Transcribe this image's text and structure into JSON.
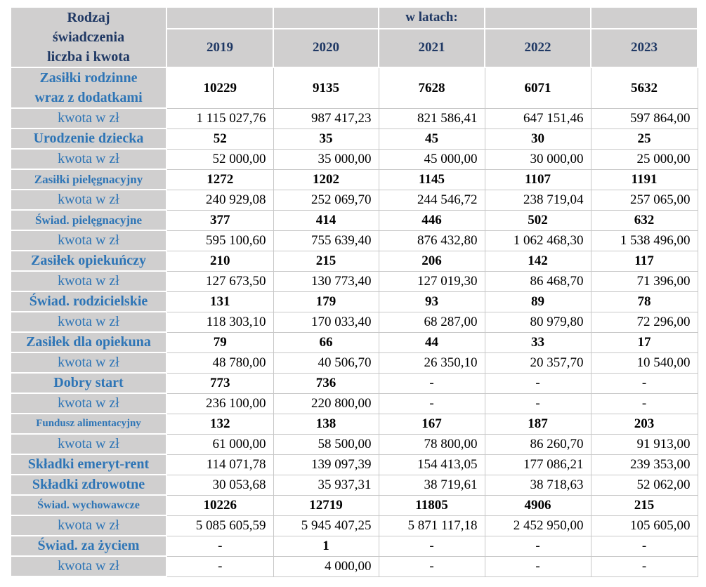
{
  "colors": {
    "header_text_navy": "#1f3864",
    "label_text_blue": "#2e75b6",
    "header_bg_gray": "#d0cfcf",
    "grid_line": "#c8c8c8",
    "value_text": "#000000"
  },
  "chart_data": {
    "type": "table",
    "corner_header": "Rodzaj\nświadczenia\nliczba i kwota",
    "span_header": "w latach:",
    "years": [
      "2019",
      "2020",
      "2021",
      "2022",
      "2023"
    ],
    "rows": [
      {
        "label": "Zasiłki rodzinne\nwraz z dodatkami",
        "label_style": "benefit",
        "label_size": "lg",
        "value_style": "count",
        "values": [
          "10229",
          "9135",
          "7628",
          "6071",
          "5632"
        ]
      },
      {
        "label": "kwota w zł",
        "label_style": "kwota",
        "label_size": "lg",
        "value_style": "amount",
        "values": [
          "1 115 027,76",
          "987 417,23",
          "821 586,41",
          "647 151,46",
          "597 864,00"
        ]
      },
      {
        "label": "Urodzenie dziecka",
        "label_style": "benefit",
        "label_size": "lg",
        "value_style": "count",
        "values": [
          "52",
          "35",
          "45",
          "30",
          "25"
        ]
      },
      {
        "label": "kwota w zł",
        "label_style": "kwota",
        "label_size": "lg",
        "value_style": "amount",
        "values": [
          "52 000,00",
          "35 000,00",
          "45 000,00",
          "30 000,00",
          "25 000,00"
        ]
      },
      {
        "label": "Zasiłki pielęgnacyjny",
        "label_style": "benefit",
        "label_size": "md",
        "value_style": "count",
        "values": [
          "1272",
          "1202",
          "1145",
          "1107",
          "1191"
        ]
      },
      {
        "label": "kwota w zł",
        "label_style": "kwota",
        "label_size": "lg",
        "value_style": "amount",
        "values": [
          "240 929,08",
          "252 069,70",
          "244 546,72",
          "238 719,04",
          "257 065,00"
        ]
      },
      {
        "label": "Świad. pielęgnacyjne",
        "label_style": "benefit",
        "label_size": "md",
        "value_style": "count",
        "values": [
          "377",
          "414",
          "446",
          "502",
          "632"
        ]
      },
      {
        "label": "kwota w zł",
        "label_style": "kwota",
        "label_size": "lg",
        "value_style": "amount",
        "values": [
          "595 100,60",
          "755 639,40",
          "876 432,80",
          "1 062 468,30",
          "1 538 496,00"
        ]
      },
      {
        "label": "Zasiłek opiekuńczy",
        "label_style": "benefit",
        "label_size": "lg",
        "value_style": "count",
        "values": [
          "210",
          "215",
          "206",
          "142",
          "117"
        ]
      },
      {
        "label": "kwota w zł",
        "label_style": "kwota",
        "label_size": "lg",
        "value_style": "amount",
        "values": [
          "127 673,50",
          "130 773,40",
          "127 019,30",
          "86 468,70",
          "71 396,00"
        ]
      },
      {
        "label": "Świad. rodzicielskie",
        "label_style": "benefit",
        "label_size": "lg",
        "value_style": "count",
        "values": [
          "131",
          "179",
          "93",
          "89",
          "78"
        ]
      },
      {
        "label": "kwota w zł",
        "label_style": "kwota",
        "label_size": "lg",
        "value_style": "amount",
        "values": [
          "118 303,10",
          "170 033,40",
          "68 287,00",
          "80 979,80",
          "72 296,00"
        ]
      },
      {
        "label": "Zasiłek dla opiekuna",
        "label_style": "benefit",
        "label_size": "lg",
        "value_style": "count",
        "values": [
          "79",
          "66",
          "44",
          "33",
          "17"
        ]
      },
      {
        "label": "kwota w zł",
        "label_style": "kwota",
        "label_size": "lg",
        "value_style": "amount",
        "values": [
          "48 780,00",
          "40 506,70",
          "26 350,10",
          "20 357,70",
          "10 540,00"
        ]
      },
      {
        "label": "Dobry start",
        "label_style": "benefit",
        "label_size": "lg",
        "value_style": "count",
        "values": [
          "773",
          "736",
          "-",
          "-",
          "-"
        ]
      },
      {
        "label": "kwota w zł",
        "label_style": "kwota",
        "label_size": "lg",
        "value_style": "amount",
        "values": [
          "236 100,00",
          "220 800,00",
          "-",
          "-",
          "-"
        ]
      },
      {
        "label": "Fundusz alimentacyjny",
        "label_style": "benefit",
        "label_size": "xs",
        "value_style": "count",
        "values": [
          "132",
          "138",
          "167",
          "187",
          "203"
        ]
      },
      {
        "label": "kwota w zł",
        "label_style": "kwota",
        "label_size": "lg",
        "value_style": "amount",
        "values": [
          "61 000,00",
          "58 500,00",
          "78 800,00",
          "86 260,70",
          "91 913,00"
        ]
      },
      {
        "label": "Składki emeryt-rent",
        "label_style": "benefit",
        "label_size": "lg",
        "value_style": "amount",
        "values": [
          "114 071,78",
          "139 097,39",
          "154 413,05",
          "177 086,21",
          "239 353,00"
        ]
      },
      {
        "label": "Składki zdrowotne",
        "label_style": "benefit",
        "label_size": "lg",
        "value_style": "amount",
        "values": [
          "30 053,68",
          "35 937,31",
          "38 719,61",
          "38 718,63",
          "52 062,00"
        ]
      },
      {
        "label": "Świad. wychowawcze",
        "label_style": "benefit",
        "label_size": "sm",
        "value_style": "count",
        "values": [
          "10226",
          "12719",
          "11805",
          "4906",
          "215"
        ]
      },
      {
        "label": "kwota w zł",
        "label_style": "kwota",
        "label_size": "lg",
        "value_style": "amount",
        "values": [
          "5 085 605,59",
          "5 945 407,25",
          "5 871 117,18",
          "2 452 950,00",
          "105 605,00"
        ]
      },
      {
        "label": "Świad. za życiem",
        "label_style": "benefit",
        "label_size": "lg",
        "value_style": "count",
        "values": [
          "-",
          "1",
          "-",
          "-",
          "-"
        ]
      },
      {
        "label": "kwota w zł",
        "label_style": "kwota",
        "label_size": "lg",
        "value_style": "amount",
        "values": [
          "-",
          "4 000,00",
          "-",
          "-",
          "-"
        ]
      }
    ]
  }
}
